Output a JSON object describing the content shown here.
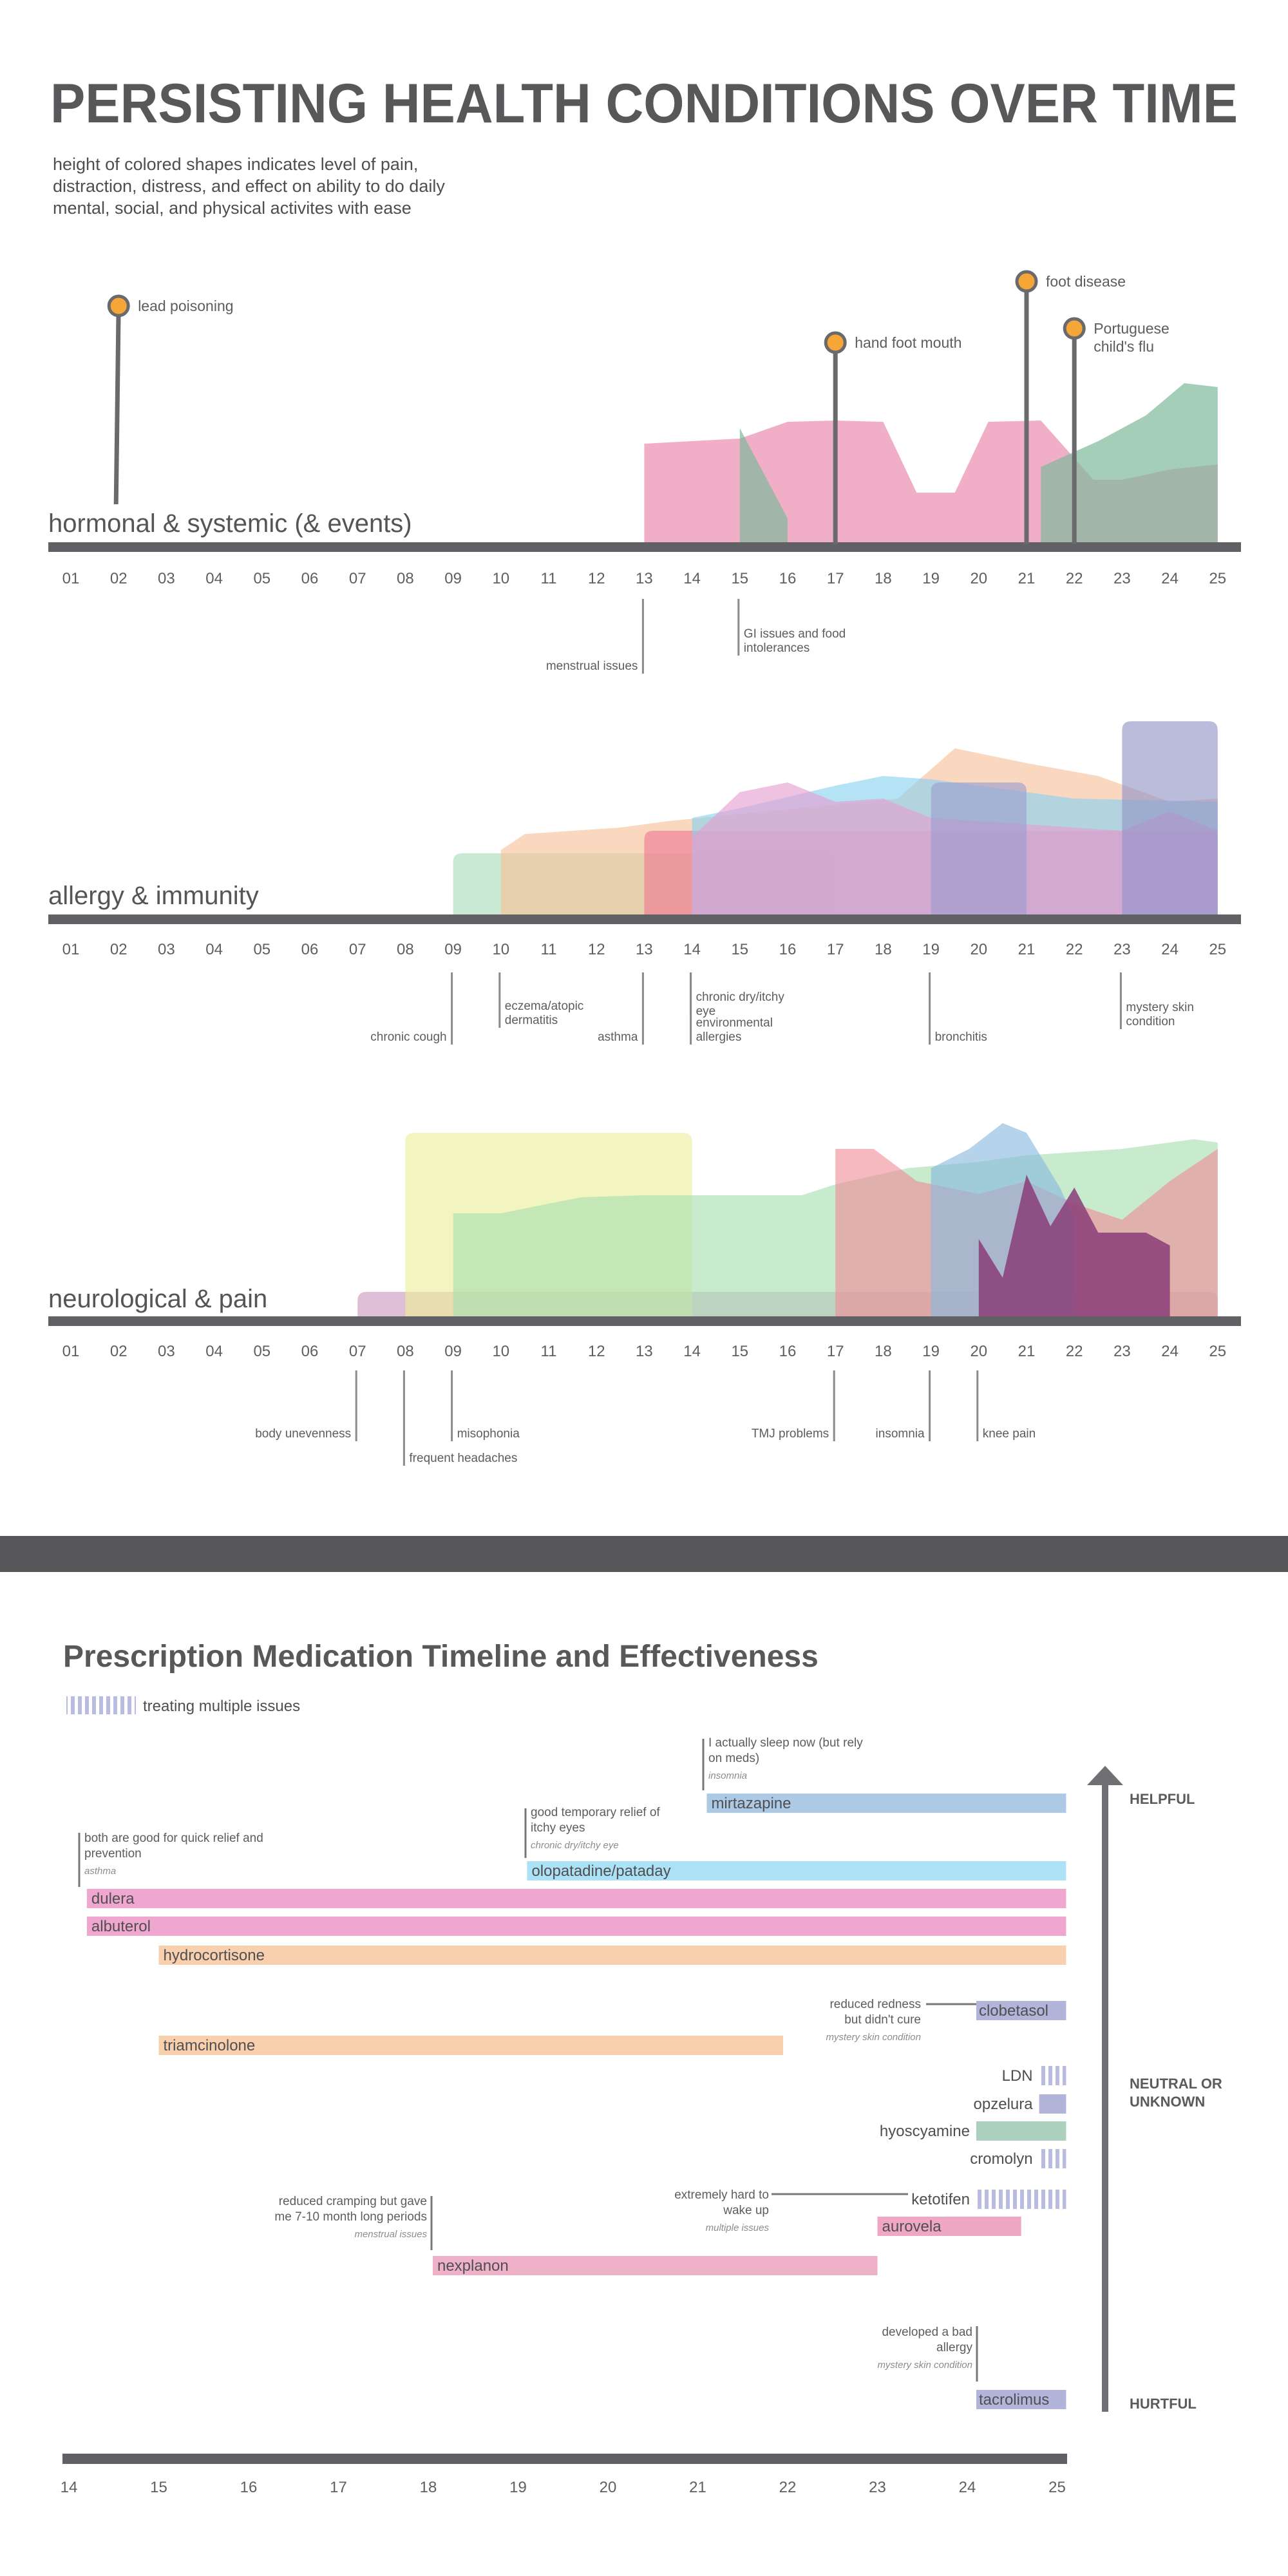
{
  "header": {
    "title": "PERSISTING HEALTH CONDITIONS OVER TIME",
    "subtitle_lines": [
      "height of colored shapes indicates level of pain,",
      "distraction, distress, and effect on ability to do daily",
      "mental, social, and physical activites with ease"
    ]
  },
  "chart_data": [
    {
      "type": "area",
      "title": "hormonal & systemic (& events)",
      "x_ticks": [
        "01",
        "02",
        "03",
        "04",
        "05",
        "06",
        "07",
        "08",
        "09",
        "10",
        "11",
        "12",
        "13",
        "14",
        "15",
        "16",
        "17",
        "18",
        "19",
        "20",
        "21",
        "22",
        "23",
        "24",
        "25"
      ],
      "xlim": [
        1,
        25
      ],
      "series": [
        {
          "name": "menstrual issues",
          "color": "#ee9ab9",
          "start": 13,
          "end": 25,
          "points": [
            [
              13,
              0.78
            ],
            [
              15,
              0.82
            ],
            [
              16,
              0.95
            ],
            [
              17,
              0.96
            ],
            [
              18,
              0.95
            ],
            [
              18.7,
              0.4
            ],
            [
              19.5,
              0.4
            ],
            [
              20.2,
              0.95
            ],
            [
              21.3,
              0.96
            ],
            [
              22.4,
              0.5
            ],
            [
              23,
              0.5
            ],
            [
              24,
              0.58
            ],
            [
              25,
              0.62
            ]
          ]
        },
        {
          "name": "GI issues and food intolerances",
          "color": "#7fb99b",
          "start": 15,
          "end": 25,
          "points": [
            [
              15,
              0.9
            ],
            [
              15.5,
              0.55
            ],
            [
              16,
              0.2
            ],
            [
              16,
              0
            ],
            [
              21.3,
              0
            ],
            [
              21.3,
              0.6
            ],
            [
              22.5,
              0.8
            ],
            [
              23.5,
              1.0
            ],
            [
              24.3,
              1.25
            ],
            [
              25,
              1.22
            ]
          ]
        }
      ],
      "labels": [
        {
          "text": "menstrual issues",
          "x": 13
        },
        {
          "text": "GI issues and food intolerances",
          "x": 15
        }
      ],
      "events": [
        {
          "text": "lead poisoning",
          "x": 2
        },
        {
          "text": "hand foot mouth",
          "x": 17
        },
        {
          "text": "foot disease",
          "x": 21
        },
        {
          "text": "Portuguese child's flu",
          "x": 22
        }
      ]
    },
    {
      "type": "area",
      "title": "allergy & immunity",
      "x_ticks": [
        "01",
        "02",
        "03",
        "04",
        "05",
        "06",
        "07",
        "08",
        "09",
        "10",
        "11",
        "12",
        "13",
        "14",
        "15",
        "16",
        "17",
        "18",
        "19",
        "20",
        "21",
        "22",
        "23",
        "24",
        "25"
      ],
      "xlim": [
        1,
        25
      ],
      "series": [
        {
          "name": "chronic cough",
          "color": "#a9dcb8",
          "start": 9,
          "end": 17
        },
        {
          "name": "eczema/atopic dermatitis",
          "color": "#f7c098",
          "start": 10,
          "end": 25
        },
        {
          "name": "asthma",
          "color": "#ee7892",
          "start": 13,
          "end": 25
        },
        {
          "name": "chronic dry/itchy eye",
          "color": "#88d2f0",
          "start": 14,
          "end": 25
        },
        {
          "name": "environmental allergies",
          "color": "#e59cd0",
          "start": 14,
          "end": 25
        },
        {
          "name": "bronchitis",
          "color": "#9b9dce",
          "start": 19,
          "end": 21
        },
        {
          "name": "mystery skin condition",
          "color": "#8f93c6",
          "start": 23,
          "end": 25
        }
      ],
      "labels": [
        {
          "text": "chronic cough",
          "x": 9
        },
        {
          "text": "eczema/atopic dermatitis",
          "x": 10
        },
        {
          "text": "asthma",
          "x": 13
        },
        {
          "text": "chronic dry/itchy eye",
          "x": 14
        },
        {
          "text": "environmental allergies",
          "x": 14
        },
        {
          "text": "bronchitis",
          "x": 19
        },
        {
          "text": "mystery skin condition",
          "x": 23
        }
      ]
    },
    {
      "type": "area",
      "title": "neurological & pain",
      "x_ticks": [
        "01",
        "02",
        "03",
        "04",
        "05",
        "06",
        "07",
        "08",
        "09",
        "10",
        "11",
        "12",
        "13",
        "14",
        "15",
        "16",
        "17",
        "18",
        "19",
        "20",
        "21",
        "22",
        "23",
        "24",
        "25"
      ],
      "xlim": [
        1,
        25
      ],
      "series": [
        {
          "name": "body unevenness",
          "color": "#cc98bf",
          "start": 7,
          "end": 25
        },
        {
          "name": "frequent headaches",
          "color": "#ecef9a",
          "start": 8,
          "end": 14
        },
        {
          "name": "misophonia",
          "color": "#a6dfb0",
          "start": 9,
          "end": 25
        },
        {
          "name": "TMJ problems",
          "color": "#ef8e98",
          "start": 17,
          "end": 25
        },
        {
          "name": "insomnia",
          "color": "#88b9e0",
          "start": 19,
          "end": 22
        },
        {
          "name": "knee pain",
          "color": "#8a3d78",
          "start": 20,
          "end": 24
        }
      ],
      "labels": [
        {
          "text": "body unevenness",
          "x": 7
        },
        {
          "text": "frequent headaches",
          "x": 8
        },
        {
          "text": "misophonia",
          "x": 9
        },
        {
          "text": "TMJ problems",
          "x": 17
        },
        {
          "text": "insomnia",
          "x": 19
        },
        {
          "text": "knee pain",
          "x": 20
        }
      ]
    },
    {
      "type": "bar",
      "title": "Prescription Medication Timeline and Effectiveness",
      "x_ticks": [
        "14",
        "15",
        "16",
        "17",
        "18",
        "19",
        "20",
        "21",
        "22",
        "23",
        "24",
        "25"
      ],
      "xlim": [
        14,
        25.1
      ],
      "effectiveness_axis": [
        "HELPFUL",
        "NEUTRAL OR UNKNOWN",
        "HURTFUL"
      ],
      "legend": {
        "text": "treating multiple issues",
        "color": "#b9bbe0"
      },
      "medications": [
        {
          "name": "mirtazapine",
          "start": 21.1,
          "end": 25.1,
          "color": "#acc9e6",
          "effect": "helpful"
        },
        {
          "name": "olopatadine/pataday",
          "start": 19.1,
          "end": 25.1,
          "color": "#ade1f5",
          "effect": "helpful"
        },
        {
          "name": "dulera",
          "start": 14.2,
          "end": 25.1,
          "color": "#efa7cf",
          "effect": "helpful"
        },
        {
          "name": "albuterol",
          "start": 14.2,
          "end": 25.1,
          "color": "#efa7cf",
          "effect": "helpful"
        },
        {
          "name": "hydrocortisone",
          "start": 15.0,
          "end": 25.1,
          "color": "#f9d0ae",
          "effect": "helpful"
        },
        {
          "name": "clobetasol",
          "start": 24.1,
          "end": 25.1,
          "color": "#b2b5d9",
          "effect": "helpful"
        },
        {
          "name": "triamcinolone",
          "start": 15.0,
          "end": 21.95,
          "color": "#f9d0ae",
          "effect": "neutral"
        },
        {
          "name": "LDN",
          "start": 24.8,
          "end": 25.1,
          "color": "#b9bbe0",
          "effect": "neutral",
          "multi": true
        },
        {
          "name": "opzelura",
          "start": 24.8,
          "end": 25.1,
          "color": "#b2b5d9",
          "effect": "neutral"
        },
        {
          "name": "hyoscyamine",
          "start": 24.1,
          "end": 25.1,
          "color": "#abd0bd",
          "effect": "neutral"
        },
        {
          "name": "cromolyn",
          "start": 24.8,
          "end": 25.1,
          "color": "#b9bbe0",
          "effect": "neutral",
          "multi": true
        },
        {
          "name": "ketotifen",
          "start": 24.1,
          "end": 25.1,
          "color": "#b9bbe0",
          "effect": "neutral",
          "multi": true
        },
        {
          "name": "aurovela",
          "start": 23.0,
          "end": 24.6,
          "color": "#efa7c4",
          "effect": "neutral"
        },
        {
          "name": "nexplanon",
          "start": 18.05,
          "end": 23.0,
          "color": "#efb1c8",
          "effect": "neutral"
        },
        {
          "name": "tacrolimus",
          "start": 24.1,
          "end": 25.1,
          "color": "#b2b5d9",
          "effect": "hurtful"
        }
      ],
      "notes": [
        {
          "lines": [
            "I actually sleep now (but rely",
            "on meds)"
          ],
          "category": "insomnia",
          "med": "mirtazapine"
        },
        {
          "lines": [
            "good temporary relief of",
            "itchy eyes"
          ],
          "category": "chronic dry/itchy eye",
          "med": "olopatadine/pataday"
        },
        {
          "lines": [
            "both are good for quick relief and",
            "prevention"
          ],
          "category": "asthma",
          "med": "dulera"
        },
        {
          "lines": [
            "reduced redness",
            "but didn't cure"
          ],
          "category": "mystery skin condition",
          "med": "clobetasol"
        },
        {
          "lines": [
            "reduced cramping but gave",
            "me 7-10 month long periods"
          ],
          "category": "menstrual issues",
          "med": "nexplanon"
        },
        {
          "lines": [
            "extremely hard to",
            "wake up"
          ],
          "category": "multiple issues",
          "med": "ketotifen"
        },
        {
          "lines": [
            "developed a bad",
            "allergy"
          ],
          "category": "mystery skin condition",
          "med": "tacrolimus"
        }
      ]
    }
  ],
  "colors": {
    "axis": "#616165",
    "event_marker": "#f5a637",
    "divider": "#58585b"
  }
}
